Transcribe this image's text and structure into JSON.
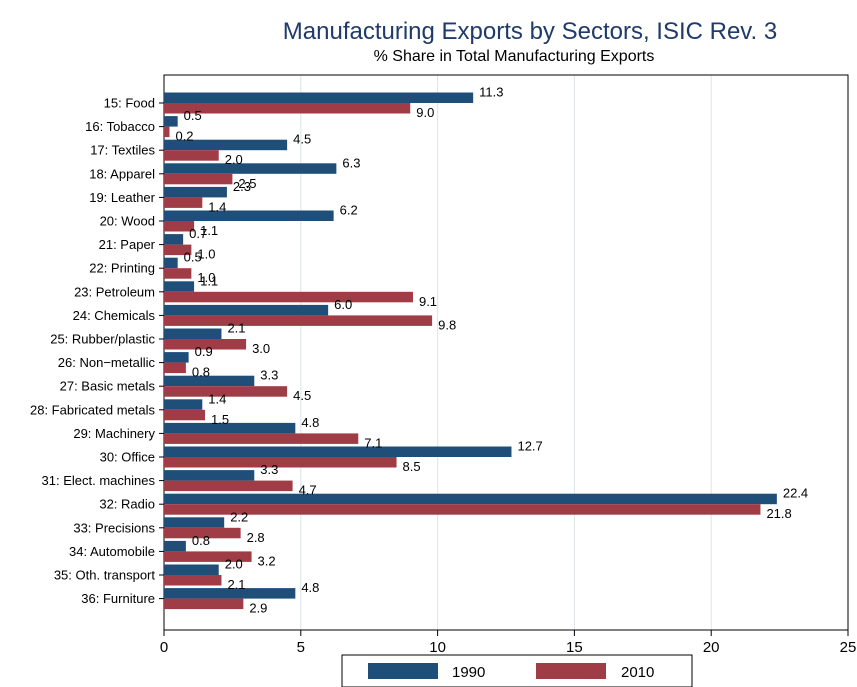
{
  "chart_data": {
    "type": "bar",
    "orientation": "horizontal",
    "title": "Manufacturing Exports by Sectors, ISIC Rev. 3",
    "subtitle": "% Share in Total Manufacturing Exports",
    "xlim": [
      0,
      25
    ],
    "xticks": [
      0,
      5,
      10,
      15,
      20,
      25
    ],
    "grid": true,
    "legend_position": "bottom",
    "categories": [
      "15: Food",
      "16: Tobacco",
      "17: Textiles",
      "18: Apparel",
      "19: Leather",
      "20: Wood",
      "21: Paper",
      "22: Printing",
      "23: Petroleum",
      "24: Chemicals",
      "25: Rubber/plastic",
      "26: Non−metallic",
      "27: Basic metals",
      "28: Fabricated metals",
      "29: Machinery",
      "30: Office",
      "31: Elect. machines",
      "32: Radio",
      "33: Precisions",
      "34: Automobile",
      "35: Oth. transport",
      "36: Furniture"
    ],
    "series": [
      {
        "name": "1990",
        "color": "#1f4e79",
        "values": [
          11.3,
          0.5,
          4.5,
          6.3,
          2.3,
          6.2,
          0.7,
          0.5,
          1.1,
          6.0,
          2.1,
          0.9,
          3.3,
          1.4,
          4.8,
          12.7,
          3.3,
          22.4,
          2.2,
          0.8,
          2.0,
          4.8
        ]
      },
      {
        "name": "2010",
        "color": "#a03c46",
        "values": [
          9.0,
          0.2,
          2.0,
          2.5,
          1.4,
          1.1,
          1.0,
          1.0,
          9.1,
          9.8,
          3.0,
          0.8,
          4.5,
          1.5,
          7.1,
          8.5,
          4.7,
          21.8,
          2.8,
          3.2,
          2.1,
          2.9
        ]
      }
    ]
  }
}
